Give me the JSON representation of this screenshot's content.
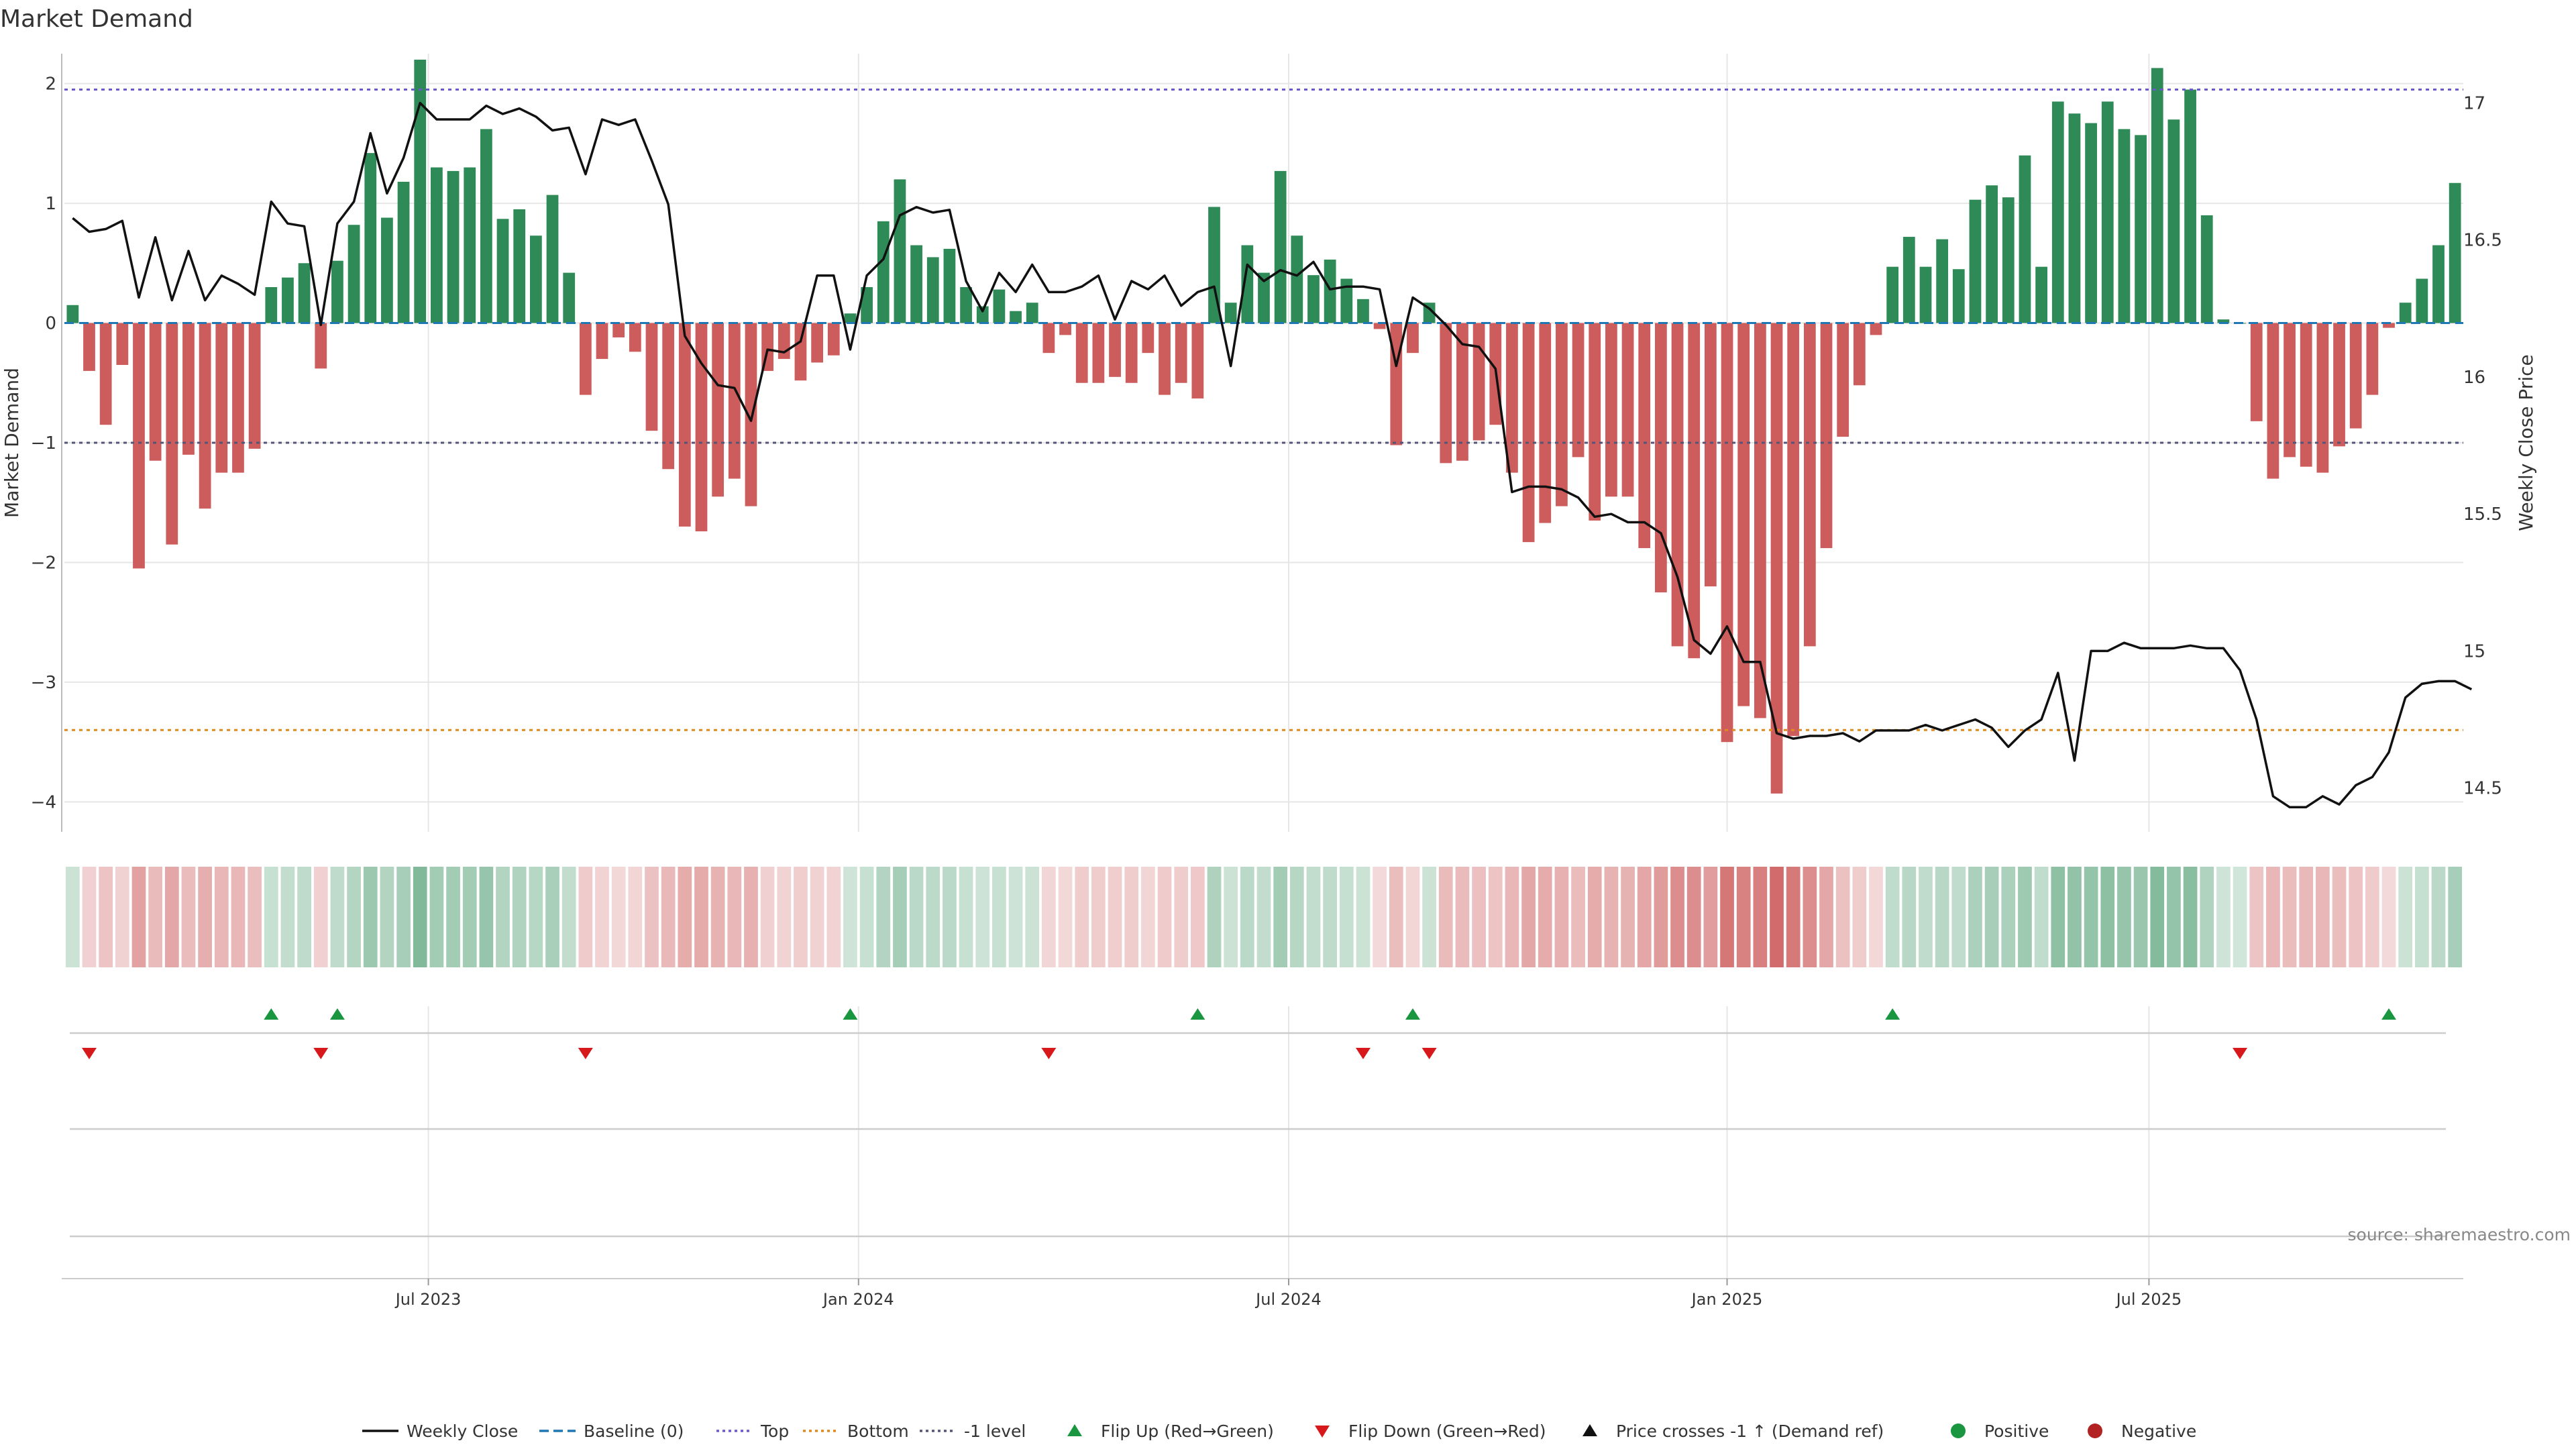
{
  "source_note": "source: sharemaestro.com",
  "colors": {
    "positive": "#2e8b57",
    "negative": "#cd5c5c",
    "price": "#111111",
    "top_line": "#6a5acd",
    "bottom_line": "#e08a1e",
    "minus1_line": "#555577",
    "baseline": "#1f77b4",
    "flip_up": "#1a9641",
    "flip_down": "#d7191c",
    "grid": "#e6e6e6",
    "axis": "#bbbbbb"
  },
  "chart_data": {
    "type": "bar",
    "title": "Market Demand",
    "ylabel": "Market Demand",
    "y2label": "Weekly Close Price",
    "ylim": [
      -4.25,
      2.25
    ],
    "y2lim": [
      14.34,
      17.18
    ],
    "yticks": [
      2,
      1,
      0,
      -1,
      -2,
      -3,
      -4
    ],
    "ytick_labels": [
      "2",
      "1",
      "0",
      "−1",
      "−2",
      "−3",
      "−4"
    ],
    "y2ticks": [
      17,
      16.5,
      16,
      15.5,
      15,
      14.5
    ],
    "y2tick_labels": [
      "17",
      "16.5",
      "16",
      "15.5",
      "15",
      "14.5"
    ],
    "xtick_labels": [
      "Jul 2023",
      "Jan 2024",
      "Jul 2024",
      "Jan 2025",
      "Jul 2025"
    ],
    "xtick_positions": [
      22,
      48,
      74,
      100.5,
      126
    ],
    "levels": {
      "top": 1.95,
      "bottom": -3.4,
      "minus1": -1.0,
      "baseline": 0
    },
    "demand": [
      0.15,
      -0.4,
      -0.85,
      -0.35,
      -2.05,
      -1.15,
      -1.85,
      -1.1,
      -1.55,
      -1.25,
      -1.25,
      -1.05,
      0.3,
      0.38,
      0.5,
      -0.38,
      0.52,
      0.82,
      1.42,
      0.88,
      1.18,
      2.2,
      1.3,
      1.27,
      1.3,
      1.62,
      0.87,
      0.95,
      0.73,
      1.07,
      0.42,
      -0.6,
      -0.3,
      -0.12,
      -0.24,
      -0.9,
      -1.22,
      -1.7,
      -1.74,
      -1.45,
      -1.3,
      -1.53,
      -0.4,
      -0.3,
      -0.48,
      -0.33,
      -0.27,
      0.08,
      0.3,
      0.85,
      1.2,
      0.65,
      0.55,
      0.62,
      0.3,
      0.14,
      0.28,
      0.1,
      0.17,
      -0.25,
      -0.1,
      -0.5,
      -0.5,
      -0.45,
      -0.5,
      -0.25,
      -0.6,
      -0.5,
      -0.63,
      0.97,
      0.17,
      0.65,
      0.42,
      1.27,
      0.73,
      0.4,
      0.53,
      0.37,
      0.2,
      -0.05,
      -1.02,
      -0.25,
      0.17,
      -1.17,
      -1.15,
      -0.98,
      -0.85,
      -1.25,
      -1.83,
      -1.67,
      -1.53,
      -1.12,
      -1.65,
      -1.45,
      -1.45,
      -1.88,
      -2.25,
      -2.7,
      -2.8,
      -2.2,
      -3.5,
      -3.2,
      -3.3,
      -3.93,
      -3.45,
      -2.7,
      -1.88,
      -0.95,
      -0.52,
      -0.1,
      0.47,
      0.72,
      0.47,
      0.7,
      0.45,
      1.03,
      1.15,
      1.05,
      1.4,
      0.47,
      1.85,
      1.75,
      1.67,
      1.85,
      1.62,
      1.57,
      2.13,
      1.7,
      1.95,
      0.9,
      0.03,
      0.0,
      -0.82,
      -1.3,
      -1.12,
      -1.2,
      -1.25,
      -1.03,
      -0.88,
      -0.6,
      -0.04,
      0.17,
      0.37,
      0.65,
      1.17
    ],
    "weekly_close": [
      16.58,
      16.53,
      16.54,
      16.57,
      16.29,
      16.51,
      16.28,
      16.46,
      16.28,
      16.37,
      16.34,
      16.3,
      16.64,
      16.56,
      16.55,
      16.19,
      16.56,
      16.64,
      16.89,
      16.67,
      16.8,
      17.0,
      16.94,
      16.94,
      16.94,
      16.99,
      16.96,
      16.98,
      16.95,
      16.9,
      16.91,
      16.74,
      16.94,
      16.92,
      16.94,
      16.79,
      16.63,
      16.15,
      16.05,
      15.97,
      15.96,
      15.84,
      16.1,
      16.09,
      16.13,
      16.37,
      16.37,
      16.1,
      16.37,
      16.43,
      16.59,
      16.62,
      16.6,
      16.61,
      16.35,
      16.24,
      16.38,
      16.31,
      16.41,
      16.31,
      16.31,
      16.33,
      16.37,
      16.21,
      16.35,
      16.32,
      16.37,
      16.26,
      16.31,
      16.33,
      16.04,
      16.41,
      16.35,
      16.39,
      16.37,
      16.42,
      16.32,
      16.33,
      16.33,
      16.32,
      16.04,
      16.29,
      16.25,
      16.19,
      16.12,
      16.11,
      16.03,
      15.58,
      15.6,
      15.6,
      15.59,
      15.56,
      15.49,
      15.5,
      15.47,
      15.47,
      15.43,
      15.27,
      15.04,
      14.99,
      15.09,
      14.96,
      14.96,
      14.7,
      14.68,
      14.69,
      14.69,
      14.7,
      14.67,
      14.71,
      14.71,
      14.71,
      14.73,
      14.71,
      14.73,
      14.75,
      14.72,
      14.65,
      14.71,
      14.75,
      14.92,
      14.6,
      15.0,
      15.0,
      15.03,
      15.01,
      15.01,
      15.01,
      15.02,
      15.01,
      15.01,
      14.93,
      14.75,
      14.47,
      14.43,
      14.43,
      14.47,
      14.44,
      14.51,
      14.54,
      14.63,
      14.83,
      14.88,
      14.89,
      14.89,
      14.86
    ],
    "flip_up_indices": [
      12,
      16,
      47,
      68,
      81,
      110,
      140
    ],
    "flip_down_indices": [
      1,
      15,
      31,
      59,
      78,
      82,
      131
    ],
    "heatmap_row": "demand intensity (same series as bars)",
    "legend": [
      {
        "label": "Weekly Close",
        "kind": "line-solid",
        "color": "#111111"
      },
      {
        "label": "Baseline (0)",
        "kind": "line-dashed",
        "color": "#1f77b4"
      },
      {
        "label": "Top",
        "kind": "line-dotted",
        "color": "#6a5acd"
      },
      {
        "label": "Bottom",
        "kind": "line-dotted",
        "color": "#e08a1e"
      },
      {
        "label": "-1 level",
        "kind": "line-dotted",
        "color": "#555577"
      },
      {
        "label": "Flip Up (Red→Green)",
        "kind": "tri-up",
        "color": "#1a9641"
      },
      {
        "label": "Flip Down (Green→Red)",
        "kind": "tri-down",
        "color": "#d7191c"
      },
      {
        "label": "Price crosses -1 ↑ (Demand ref)",
        "kind": "tri-up",
        "color": "#111111"
      },
      {
        "label": "Positive",
        "kind": "dot",
        "color": "#1a9641"
      },
      {
        "label": "Negative",
        "kind": "dot",
        "color": "#b22222"
      }
    ]
  }
}
